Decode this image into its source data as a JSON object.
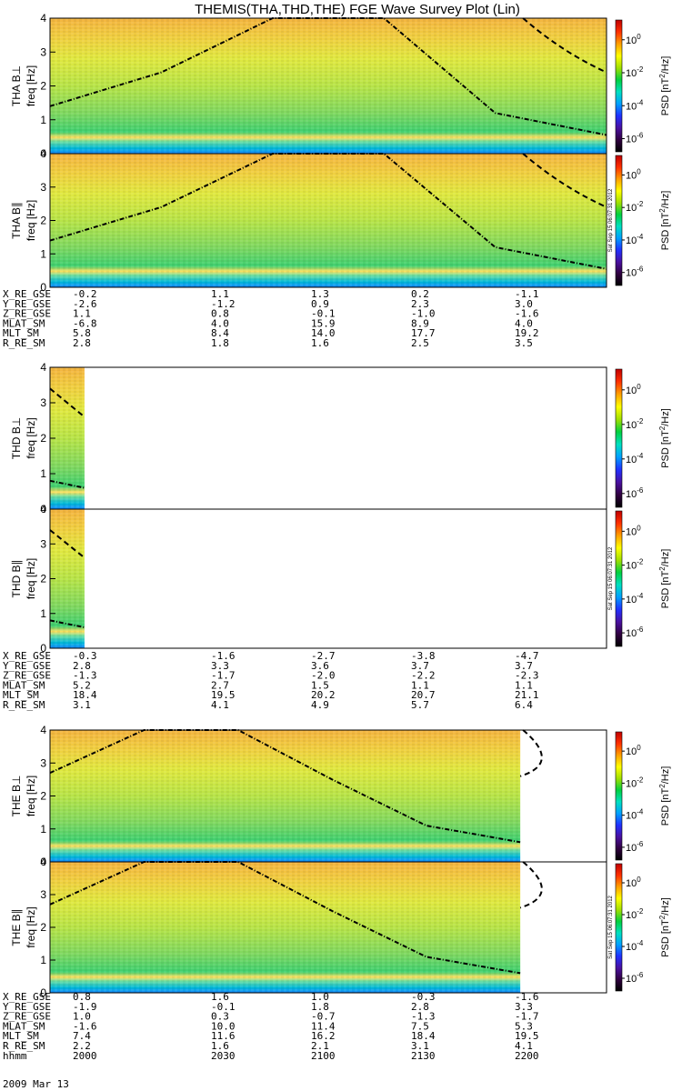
{
  "title": "THEMIS(THA,THD,THE) FGE Wave Survey Plot (Lin)",
  "stamp": "Sat Sep 15 06:07:31 2012",
  "colorbar": {
    "label": "PSD [nT^2/Hz]",
    "label_main": "PSD [nT",
    "label_sup": "2",
    "label_end": "/Hz]",
    "ticks": [
      {
        "base": "10",
        "exp": "0"
      },
      {
        "base": "10",
        "exp": "-2"
      },
      {
        "base": "10",
        "exp": "-4"
      },
      {
        "base": "10",
        "exp": "-6"
      }
    ],
    "colors": [
      "#000000",
      "#300040",
      "#4a10a0",
      "#2030ff",
      "#00a0ff",
      "#00e0c0",
      "#00d040",
      "#a0e000",
      "#ffff00",
      "#ffa000",
      "#ff3000",
      "#c00000"
    ]
  },
  "ylabel": "freq [Hz]",
  "yticks": [
    "0",
    "1",
    "2",
    "3",
    "4"
  ],
  "chart_data": [
    {
      "type": "heatmap",
      "probe": "THA",
      "component": "THA B⊥",
      "ylabel": "freq [Hz]",
      "ylim": [
        0,
        4
      ],
      "zlabel": "PSD [nT^2/Hz]",
      "zlim": [
        1e-07,
        10
      ],
      "z_scale": "log",
      "data_extent": [
        0,
        1
      ],
      "lines": [
        {
          "style": "dashdot",
          "f": [
            1.4,
            2.4,
            4.2,
            4.2,
            1.2,
            0.55
          ]
        },
        {
          "style": "dashed",
          "f": [
            2.4
          ]
        }
      ]
    },
    {
      "type": "heatmap",
      "probe": "THA",
      "component": "THA B∥",
      "ylabel": "freq [Hz]",
      "ylim": [
        0,
        4
      ],
      "zlabel": "PSD [nT^2/Hz]",
      "zlim": [
        1e-07,
        10
      ],
      "z_scale": "log",
      "data_extent": [
        0,
        1
      ],
      "lines": [
        {
          "style": "dashdot",
          "f": [
            1.4,
            2.4,
            4.2,
            4.2,
            1.2,
            0.55
          ]
        },
        {
          "style": "dashed",
          "f": [
            2.4
          ]
        }
      ]
    },
    {
      "type": "heatmap",
      "probe": "THD",
      "component": "THD B⊥",
      "ylabel": "freq [Hz]",
      "ylim": [
        0,
        4
      ],
      "zlabel": "PSD [nT^2/Hz]",
      "zlim": [
        1e-07,
        10
      ],
      "z_scale": "log",
      "data_extent": [
        0,
        0.062
      ],
      "lines": [
        {
          "style": "dashdot",
          "f": [
            0.8,
            0.6
          ]
        },
        {
          "style": "dashed",
          "f": [
            3.4,
            2.6
          ]
        }
      ]
    },
    {
      "type": "heatmap",
      "probe": "THD",
      "component": "THD B∥",
      "ylabel": "freq [Hz]",
      "ylim": [
        0,
        4
      ],
      "zlabel": "PSD [nT^2/Hz]",
      "zlim": [
        1e-07,
        10
      ],
      "z_scale": "log",
      "data_extent": [
        0,
        0.062
      ],
      "lines": [
        {
          "style": "dashdot",
          "f": [
            0.8,
            0.6
          ]
        },
        {
          "style": "dashed",
          "f": [
            3.4,
            2.6
          ]
        }
      ]
    },
    {
      "type": "heatmap",
      "probe": "THE",
      "component": "THE B⊥",
      "ylabel": "freq [Hz]",
      "ylim": [
        0,
        4
      ],
      "zlabel": "PSD [nT^2/Hz]",
      "zlim": [
        1e-07,
        10
      ],
      "z_scale": "log",
      "data_extent": [
        0,
        0.845
      ],
      "lines": [
        {
          "style": "dashdot",
          "f": [
            2.7,
            4.2,
            4.2,
            2.5,
            1.1,
            0.6
          ]
        },
        {
          "style": "dashed",
          "f": [
            2.6
          ]
        }
      ]
    },
    {
      "type": "heatmap",
      "probe": "THE",
      "component": "THE B∥",
      "ylabel": "freq [Hz]",
      "ylim": [
        0,
        4
      ],
      "zlabel": "PSD [nT^2/Hz]",
      "zlim": [
        1e-07,
        10
      ],
      "z_scale": "log",
      "data_extent": [
        0,
        0.845
      ],
      "lines": [
        {
          "style": "dashdot",
          "f": [
            2.7,
            4.2,
            4.2,
            2.5,
            1.1,
            0.6
          ]
        },
        {
          "style": "dashed",
          "f": [
            2.6
          ]
        }
      ]
    }
  ],
  "ephemeris": [
    {
      "probe": "THA",
      "rows": [
        {
          "name": "X_RE_GSE",
          "values": [
            "-0.2",
            "1.1",
            "1.3",
            "0.2",
            "-1.1"
          ]
        },
        {
          "name": "Y_RE_GSE",
          "values": [
            "-2.6",
            "-1.2",
            "0.9",
            "2.3",
            "3.0"
          ]
        },
        {
          "name": "Z_RE_GSE",
          "values": [
            "1.1",
            "0.8",
            "-0.1",
            "-1.0",
            "-1.6"
          ]
        },
        {
          "name": "MLAT_SM",
          "values": [
            "-6.8",
            "4.0",
            "15.9",
            "8.9",
            "4.0"
          ]
        },
        {
          "name": "MLT_SM",
          "values": [
            "5.8",
            "8.4",
            "14.0",
            "17.7",
            "19.2"
          ]
        },
        {
          "name": "R_RE_SM",
          "values": [
            "2.8",
            "1.8",
            "1.6",
            "2.5",
            "3.5"
          ]
        }
      ]
    },
    {
      "probe": "THD",
      "rows": [
        {
          "name": "X_RE_GSE",
          "values": [
            "-0.3",
            "-1.6",
            "-2.7",
            "-3.8",
            "-4.7"
          ]
        },
        {
          "name": "Y_RE_GSE",
          "values": [
            "2.8",
            "3.3",
            "3.6",
            "3.7",
            "3.7"
          ]
        },
        {
          "name": "Z_RE_GSE",
          "values": [
            "-1.3",
            "-1.7",
            "-2.0",
            "-2.2",
            "-2.3"
          ]
        },
        {
          "name": "MLAT_SM",
          "values": [
            "5.2",
            "2.7",
            "1.5",
            "1.1",
            "1.1"
          ]
        },
        {
          "name": "MLT_SM",
          "values": [
            "18.4",
            "19.5",
            "20.2",
            "20.7",
            "21.1"
          ]
        },
        {
          "name": "R_RE_SM",
          "values": [
            "3.1",
            "4.1",
            "4.9",
            "5.7",
            "6.4"
          ]
        }
      ]
    },
    {
      "probe": "THE",
      "rows": [
        {
          "name": "X_RE_GSE",
          "values": [
            "0.8",
            "1.6",
            "1.0",
            "-0.3",
            "-1.6"
          ]
        },
        {
          "name": "Y_RE_GSE",
          "values": [
            "-1.9",
            "-0.1",
            "1.8",
            "2.8",
            "3.3"
          ]
        },
        {
          "name": "Z_RE_GSE",
          "values": [
            "1.0",
            "0.3",
            "-0.7",
            "-1.3",
            "-1.7"
          ]
        },
        {
          "name": "MLAT_SM",
          "values": [
            "-1.6",
            "10.0",
            "11.4",
            "7.5",
            "5.3"
          ]
        },
        {
          "name": "MLT_SM",
          "values": [
            "7.4",
            "11.6",
            "16.2",
            "18.4",
            "19.5"
          ]
        },
        {
          "name": "R_RE_SM",
          "values": [
            "2.2",
            "1.6",
            "2.1",
            "3.1",
            "4.1"
          ]
        },
        {
          "name": "hhmm",
          "values": [
            "2000",
            "2030",
            "2100",
            "2130",
            "2200"
          ]
        }
      ]
    }
  ],
  "date": "2009 Mar 13"
}
